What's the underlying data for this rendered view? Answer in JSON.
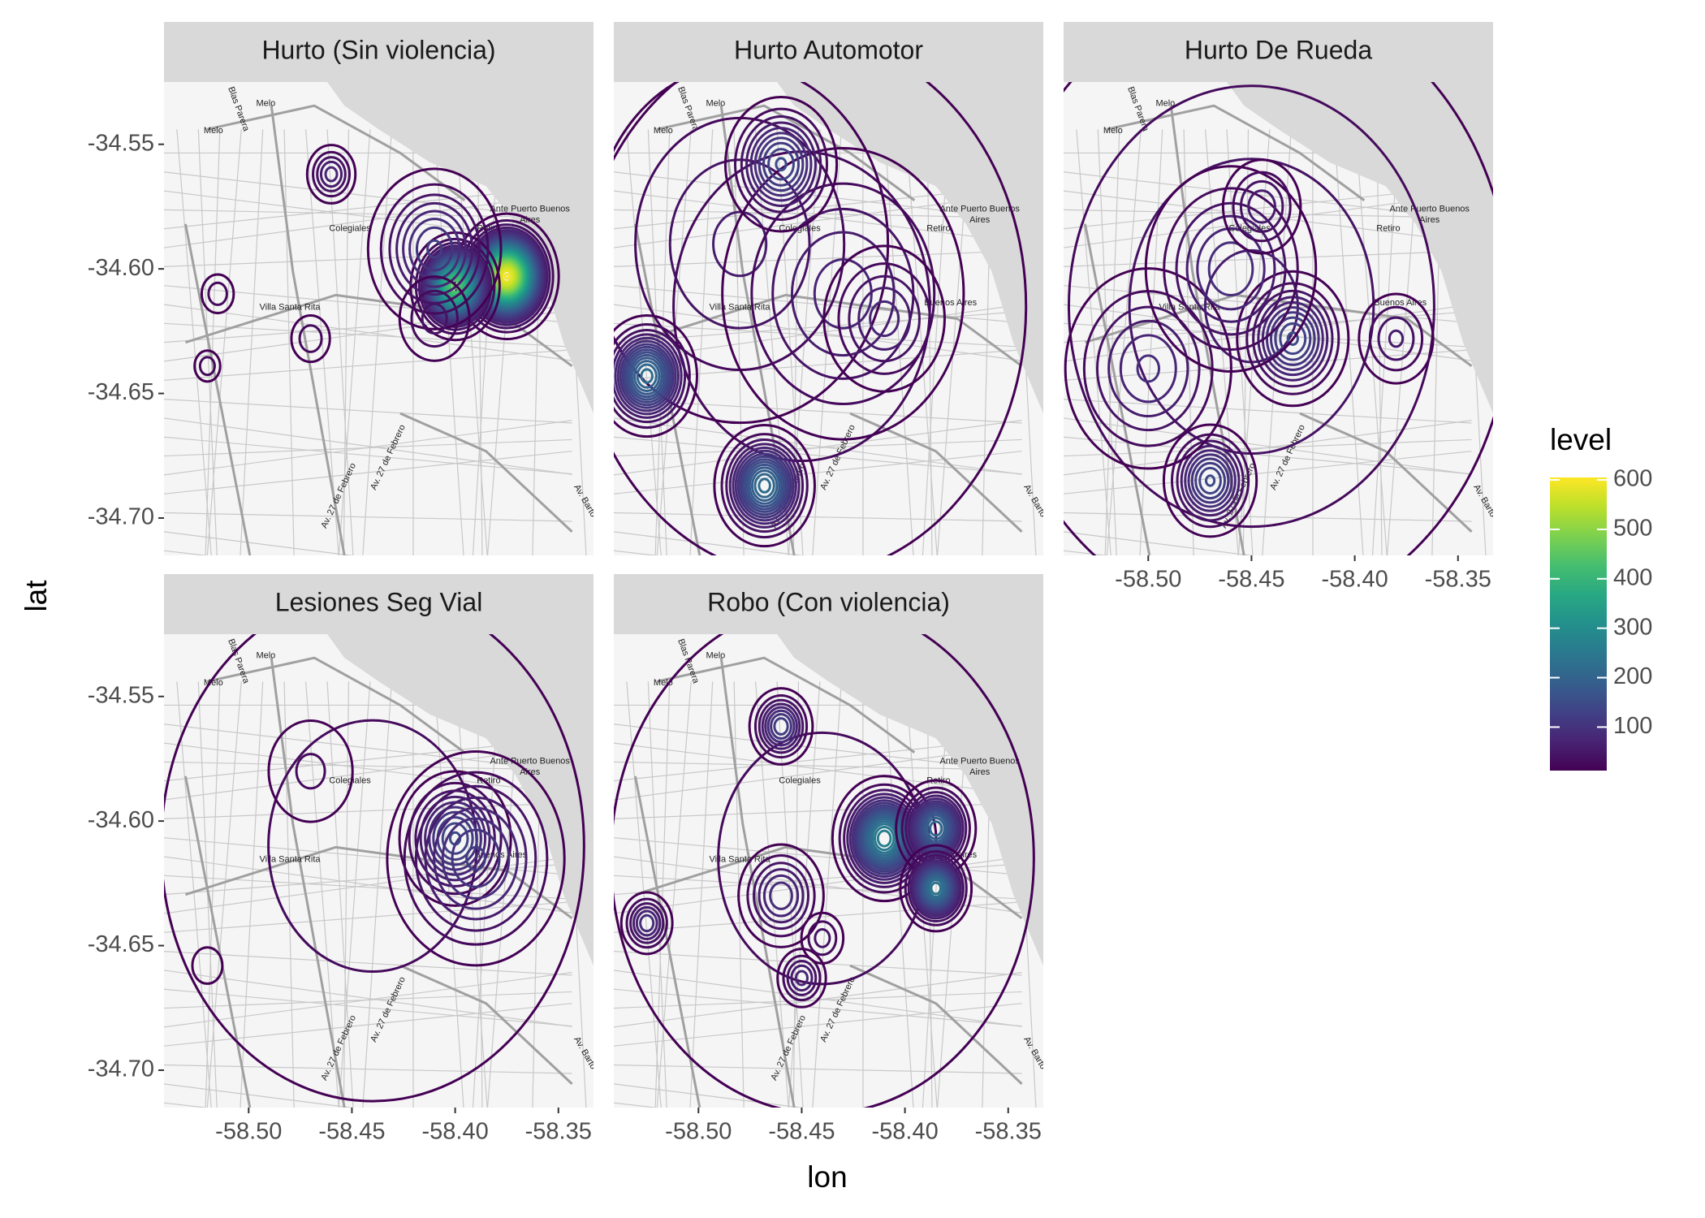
{
  "chart_data": {
    "type": "density_contour",
    "x_label": "lon",
    "y_label": "lat",
    "xlim": [
      -58.541,
      -58.333
    ],
    "ylim": [
      -34.715,
      -34.525
    ],
    "xticks": [
      {
        "value": -58.5,
        "label": "-58.50"
      },
      {
        "value": -58.45,
        "label": "-58.45"
      },
      {
        "value": -58.4,
        "label": "-58.40"
      },
      {
        "value": -58.35,
        "label": "-58.35"
      }
    ],
    "yticks": [
      {
        "value": -34.55,
        "label": "-34.55"
      },
      {
        "value": -34.6,
        "label": "-34.60"
      },
      {
        "value": -34.65,
        "label": "-34.65"
      },
      {
        "value": -34.7,
        "label": "-34.70"
      }
    ],
    "legend": {
      "title": "level",
      "colormap": "viridis",
      "clim": [
        12,
        605
      ],
      "ticks": [
        100,
        200,
        300,
        400,
        500,
        600
      ]
    },
    "map_labels": [
      "Melo",
      "Blas Parera",
      "Ante Puerto Buenos",
      "Aires",
      "Retiro",
      "Colegiales",
      "Villa Santa Rita",
      "Buenos Aires",
      "Av. 27 de Febrero",
      "Av. Barto"
    ],
    "panels": [
      {
        "title": "Hurto (Sin violencia)",
        "hotspots": [
          {
            "lon": -58.375,
            "lat": -34.603,
            "level": 600,
            "spread": 0.009
          },
          {
            "lon": -58.4,
            "lat": -34.607,
            "level": 450,
            "spread": 0.008
          },
          {
            "lon": -58.41,
            "lat": -34.592,
            "level": 120,
            "spread": 0.015
          },
          {
            "lon": -58.41,
            "lat": -34.62,
            "level": 50,
            "spread": 0.01
          },
          {
            "lon": -58.46,
            "lat": -34.562,
            "level": 80,
            "spread": 0.006
          },
          {
            "lon": -58.52,
            "lat": -34.639,
            "level": 40,
            "spread": 0.004
          },
          {
            "lon": -58.515,
            "lat": -34.61,
            "level": 40,
            "spread": 0.005
          },
          {
            "lon": -58.47,
            "lat": -34.628,
            "level": 40,
            "spread": 0.006
          }
        ]
      },
      {
        "title": "Hurto Automotor",
        "hotspots": [
          {
            "lon": -58.45,
            "lat": -34.615,
            "level": 40,
            "spread": 0.07
          },
          {
            "lon": -58.48,
            "lat": -34.59,
            "level": 60,
            "spread": 0.04
          },
          {
            "lon": -58.43,
            "lat": -34.61,
            "level": 80,
            "spread": 0.03
          },
          {
            "lon": -58.41,
            "lat": -34.62,
            "level": 80,
            "spread": 0.015
          },
          {
            "lon": -58.525,
            "lat": -34.643,
            "level": 230,
            "spread": 0.01
          },
          {
            "lon": -58.468,
            "lat": -34.687,
            "level": 230,
            "spread": 0.01
          },
          {
            "lon": -58.46,
            "lat": -34.558,
            "level": 150,
            "spread": 0.012
          }
        ]
      },
      {
        "title": "Hurto De Rueda",
        "hotspots": [
          {
            "lon": -58.45,
            "lat": -34.615,
            "level": 60,
            "spread": 0.07
          },
          {
            "lon": -58.47,
            "lat": -34.685,
            "level": 150,
            "spread": 0.01
          },
          {
            "lon": -58.43,
            "lat": -34.628,
            "level": 150,
            "spread": 0.012
          },
          {
            "lon": -58.5,
            "lat": -34.64,
            "level": 90,
            "spread": 0.02
          },
          {
            "lon": -58.46,
            "lat": -34.6,
            "level": 100,
            "spread": 0.02
          },
          {
            "lon": -58.445,
            "lat": -34.575,
            "level": 70,
            "spread": 0.01
          },
          {
            "lon": -58.38,
            "lat": -34.628,
            "level": 60,
            "spread": 0.01
          }
        ]
      },
      {
        "title": "Lesiones Seg Vial",
        "hotspots": [
          {
            "lon": -58.44,
            "lat": -34.61,
            "level": 35,
            "spread": 0.07
          },
          {
            "lon": -58.4,
            "lat": -34.607,
            "level": 150,
            "spread": 0.012
          },
          {
            "lon": -58.39,
            "lat": -34.615,
            "level": 120,
            "spread": 0.02
          },
          {
            "lon": -58.47,
            "lat": -34.58,
            "level": 30,
            "spread": 0.015
          },
          {
            "lon": -58.52,
            "lat": -34.658,
            "level": 25,
            "spread": 0.006
          }
        ]
      },
      {
        "title": "Robo (Con violencia)",
        "hotspots": [
          {
            "lon": -58.44,
            "lat": -34.615,
            "level": 35,
            "spread": 0.07
          },
          {
            "lon": -58.41,
            "lat": -34.607,
            "level": 280,
            "spread": 0.01
          },
          {
            "lon": -58.385,
            "lat": -34.603,
            "level": 220,
            "spread": 0.008
          },
          {
            "lon": -58.385,
            "lat": -34.627,
            "level": 250,
            "spread": 0.007
          },
          {
            "lon": -58.46,
            "lat": -34.562,
            "level": 130,
            "spread": 0.007
          },
          {
            "lon": -58.525,
            "lat": -34.641,
            "level": 100,
            "spread": 0.006
          },
          {
            "lon": -58.45,
            "lat": -34.663,
            "level": 80,
            "spread": 0.006
          },
          {
            "lon": -58.46,
            "lat": -34.63,
            "level": 100,
            "spread": 0.01
          },
          {
            "lon": -58.44,
            "lat": -34.647,
            "level": 50,
            "spread": 0.006
          }
        ]
      }
    ]
  }
}
